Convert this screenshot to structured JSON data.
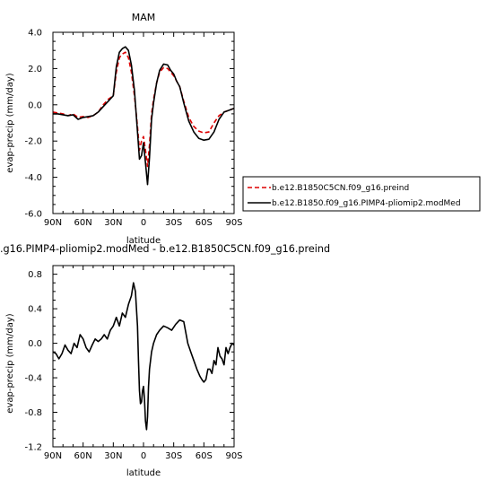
{
  "chart_data": [
    {
      "type": "line",
      "title": "MAM",
      "xlabel": "latitude",
      "ylabel": "evap-precip (mm/day)",
      "xlim": [
        90,
        -90
      ],
      "ylim": [
        -6.0,
        4.0
      ],
      "xticks": [
        90,
        60,
        30,
        0,
        -30,
        -60,
        -90
      ],
      "xtick_labels": [
        "90N",
        "60N",
        "30N",
        "0",
        "30S",
        "60S",
        "90S"
      ],
      "yticks": [
        -6,
        -4,
        -2,
        0,
        2,
        4
      ],
      "ytick_labels": [
        "-6.0",
        "-4.0",
        "-2.0",
        "0.0",
        "2.0",
        "4.0"
      ],
      "grid": false,
      "legend_position": "right",
      "series": [
        {
          "name": "b.e12.B1850C5CN.f09_g16.preind",
          "color": "#dd0000",
          "dash": true,
          "x": [
            90,
            85,
            80,
            75,
            70,
            65,
            60,
            55,
            50,
            45,
            40,
            35,
            30,
            27,
            24,
            21,
            18,
            15,
            12,
            9,
            6,
            4,
            2,
            0,
            -2,
            -4,
            -6,
            -8,
            -10,
            -13,
            -16,
            -20,
            -24,
            -27,
            -30,
            -33,
            -36,
            -40,
            -45,
            -50,
            -55,
            -60,
            -65,
            -70,
            -75,
            -80,
            -85,
            -90
          ],
          "y": [
            -0.4,
            -0.45,
            -0.5,
            -0.6,
            -0.5,
            -0.7,
            -0.65,
            -0.7,
            -0.6,
            -0.4,
            0.0,
            0.3,
            0.5,
            1.8,
            2.6,
            2.8,
            2.9,
            2.6,
            1.8,
            0.5,
            -1.2,
            -2.5,
            -2.0,
            -1.75,
            -2.5,
            -3.4,
            -2.2,
            -0.5,
            0.3,
            1.2,
            1.8,
            2.05,
            2.0,
            1.8,
            1.6,
            1.3,
            1.0,
            0.2,
            -0.7,
            -1.2,
            -1.45,
            -1.55,
            -1.5,
            -1.0,
            -0.6,
            -0.4,
            -0.3,
            -0.2
          ]
        },
        {
          "name": "b.e12.B1850.f09_g16.PIMP4-pliomip2.modMed",
          "color": "#000000",
          "dash": false,
          "x": [
            90,
            85,
            80,
            75,
            70,
            65,
            60,
            55,
            50,
            45,
            40,
            35,
            30,
            27,
            24,
            21,
            18,
            15,
            12,
            9,
            6,
            4,
            2,
            0,
            -2,
            -4,
            -6,
            -8,
            -10,
            -13,
            -16,
            -20,
            -24,
            -27,
            -30,
            -33,
            -36,
            -40,
            -45,
            -50,
            -55,
            -60,
            -65,
            -70,
            -75,
            -80,
            -85,
            -90
          ],
          "y": [
            -0.5,
            -0.5,
            -0.55,
            -0.6,
            -0.55,
            -0.8,
            -0.7,
            -0.65,
            -0.6,
            -0.4,
            -0.1,
            0.2,
            0.5,
            2.1,
            2.9,
            3.1,
            3.2,
            3.0,
            2.2,
            0.8,
            -1.5,
            -3.0,
            -2.8,
            -2.1,
            -3.2,
            -4.4,
            -2.9,
            -0.8,
            0.1,
            1.2,
            1.9,
            2.25,
            2.2,
            1.9,
            1.7,
            1.3,
            1.0,
            0.1,
            -0.9,
            -1.5,
            -1.85,
            -1.95,
            -1.9,
            -1.5,
            -0.8,
            -0.4,
            -0.3,
            -0.2
          ]
        }
      ]
    },
    {
      "type": "line",
      "title": ".g16.PIMP4-pliomip2.modMed - b.e12.B1850C5CN.f09_g16.preind",
      "xlabel": "latitude",
      "ylabel": "evap-precip (mm/day)",
      "xlim": [
        90,
        -90
      ],
      "ylim": [
        -1.2,
        0.9
      ],
      "xticks": [
        90,
        60,
        30,
        0,
        -30,
        -60,
        -90
      ],
      "xtick_labels": [
        "90N",
        "60N",
        "30N",
        "0",
        "30S",
        "60S",
        "90S"
      ],
      "yticks": [
        -1.2,
        -0.8,
        -0.4,
        0.0,
        0.4,
        0.8
      ],
      "ytick_labels": [
        "-1.2",
        "-0.8",
        "-0.4",
        "0.0",
        "0.4",
        "0.8"
      ],
      "grid": false,
      "series": [
        {
          "color": "#000000",
          "dash": false,
          "x": [
            90,
            87,
            84,
            81,
            78,
            75,
            72,
            69,
            66,
            63,
            60,
            57,
            54,
            51,
            48,
            45,
            42,
            39,
            36,
            33,
            30,
            27,
            24,
            21,
            18,
            15,
            12,
            10,
            8,
            6,
            5,
            4,
            3,
            2,
            1,
            0,
            -1,
            -2,
            -3,
            -4,
            -5,
            -6,
            -8,
            -10,
            -13,
            -16,
            -20,
            -24,
            -28,
            -32,
            -36,
            -40,
            -44,
            -47,
            -50,
            -53,
            -56,
            -58,
            -60,
            -62,
            -64,
            -66,
            -68,
            -70,
            -72,
            -74,
            -76,
            -78,
            -80,
            -82,
            -84,
            -86,
            -88,
            -90
          ],
          "y": [
            -0.1,
            -0.12,
            -0.18,
            -0.12,
            -0.02,
            -0.08,
            -0.12,
            0.0,
            -0.05,
            0.1,
            0.05,
            -0.05,
            -0.1,
            -0.02,
            0.05,
            0.02,
            0.05,
            0.1,
            0.05,
            0.15,
            0.2,
            0.3,
            0.2,
            0.35,
            0.3,
            0.45,
            0.55,
            0.7,
            0.6,
            0.2,
            -0.2,
            -0.55,
            -0.7,
            -0.68,
            -0.55,
            -0.5,
            -0.65,
            -0.9,
            -1.0,
            -0.85,
            -0.5,
            -0.3,
            -0.1,
            0.0,
            0.1,
            0.15,
            0.2,
            0.18,
            0.15,
            0.22,
            0.27,
            0.25,
            0.0,
            -0.1,
            -0.2,
            -0.3,
            -0.38,
            -0.42,
            -0.45,
            -0.42,
            -0.3,
            -0.3,
            -0.35,
            -0.2,
            -0.25,
            -0.05,
            -0.15,
            -0.18,
            -0.25,
            -0.05,
            -0.12,
            -0.05,
            0.0,
            -0.02
          ]
        }
      ]
    }
  ]
}
